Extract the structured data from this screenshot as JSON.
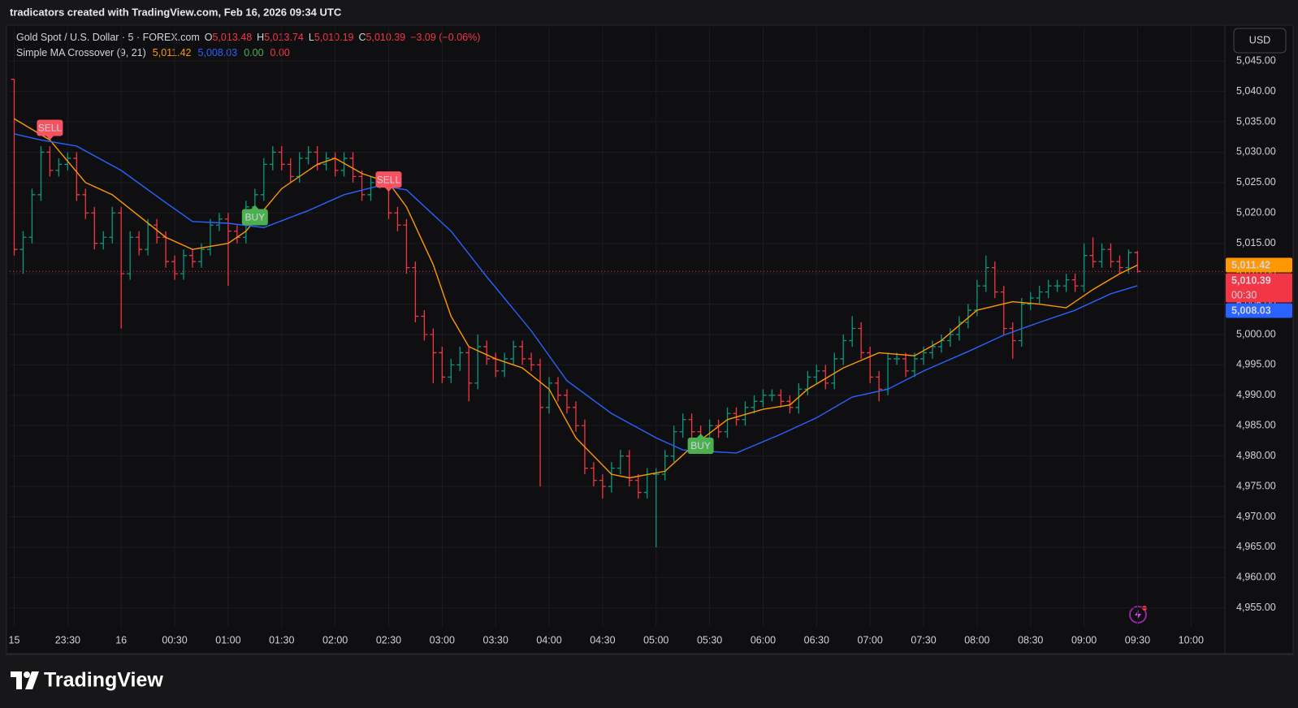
{
  "header": {
    "title": "tradicators created with TradingView.com, Feb 16, 2026 09:34 UTC"
  },
  "footer": {
    "brand": "TradingView"
  },
  "chart_data": {
    "type": "ohlc",
    "symbol": "Gold Spot / U.S. Dollar · 5 · FOREX.com",
    "ohlc_legend": [
      {
        "key": "O",
        "value": "5,013.48"
      },
      {
        "key": "H",
        "value": "5,013.74"
      },
      {
        "key": "L",
        "value": "5,010.19"
      },
      {
        "key": "C",
        "value": "5,010.39"
      }
    ],
    "change": "−3.09 (−0.06%)",
    "indicator": {
      "name": "Simple MA Crossover (9, 21)",
      "values": [
        {
          "text": "5,011.42",
          "color": "#ff9800"
        },
        {
          "text": "5,008.03",
          "color": "#2962ff"
        },
        {
          "text": "0.00",
          "color": "#4caf50"
        },
        {
          "text": "0.00",
          "color": "#f23645"
        }
      ]
    },
    "currency": "USD",
    "xlim": [
      -0.5,
      135.8
    ],
    "ylim": [
      4951.9,
      5050.5
    ],
    "grid": true,
    "xticks": [
      {
        "value": 0,
        "label": "15"
      },
      {
        "value": 6,
        "label": "23:30"
      },
      {
        "value": 12,
        "label": "16"
      },
      {
        "value": 18,
        "label": "00:30"
      },
      {
        "value": 24,
        "label": "01:00"
      },
      {
        "value": 30,
        "label": "01:30"
      },
      {
        "value": 36,
        "label": "02:00"
      },
      {
        "value": 42,
        "label": "02:30"
      },
      {
        "value": 48,
        "label": "03:00"
      },
      {
        "value": 54,
        "label": "03:30"
      },
      {
        "value": 60,
        "label": "04:00"
      },
      {
        "value": 66,
        "label": "04:30"
      },
      {
        "value": 72,
        "label": "05:00"
      },
      {
        "value": 78,
        "label": "05:30"
      },
      {
        "value": 84,
        "label": "06:00"
      },
      {
        "value": 90,
        "label": "06:30"
      },
      {
        "value": 96,
        "label": "07:00"
      },
      {
        "value": 102,
        "label": "07:30"
      },
      {
        "value": 108,
        "label": "08:00"
      },
      {
        "value": 114,
        "label": "08:30"
      },
      {
        "value": 120,
        "label": "09:00"
      },
      {
        "value": 126,
        "label": "09:30"
      },
      {
        "value": 132,
        "label": "10:00"
      }
    ],
    "yticks": [
      {
        "value": 4955,
        "label": "4,955.00"
      },
      {
        "value": 4960,
        "label": "4,960.00"
      },
      {
        "value": 4965,
        "label": "4,965.00"
      },
      {
        "value": 4970,
        "label": "4,970.00"
      },
      {
        "value": 4975,
        "label": "4,975.00"
      },
      {
        "value": 4980,
        "label": "4,980.00"
      },
      {
        "value": 4985,
        "label": "4,985.00"
      },
      {
        "value": 4990,
        "label": "4,990.00"
      },
      {
        "value": 4995,
        "label": "4,995.00"
      },
      {
        "value": 5000,
        "label": "5,000.00"
      },
      {
        "value": 5005,
        "label": "5,005.00"
      },
      {
        "value": 5010,
        "label": "5,010.00"
      },
      {
        "value": 5015,
        "label": "5,015.00"
      },
      {
        "value": 5020,
        "label": "5,020.00"
      },
      {
        "value": 5025,
        "label": "5,025.00"
      },
      {
        "value": 5030,
        "label": "5,030.00"
      },
      {
        "value": 5035,
        "label": "5,035.00"
      },
      {
        "value": 5040,
        "label": "5,040.00"
      },
      {
        "value": 5045,
        "label": "5,045.00"
      }
    ],
    "bars": {
      "up_color": "#089981",
      "down_color": "#f23645",
      "open": [
        5042,
        5014,
        5016,
        5023,
        5030,
        5027,
        5028,
        5029,
        5023,
        5020,
        5015,
        5016,
        5020,
        5010,
        5016,
        5014,
        5018,
        5016,
        5012,
        5010,
        5013,
        5012,
        5014,
        5018,
        5019,
        5017,
        5016,
        5021,
        5023,
        5028,
        5030,
        5028,
        5026,
        5029,
        5030,
        5028,
        5029,
        5027,
        5029,
        5026,
        5023,
        5025,
        5025,
        5020,
        5018,
        5011,
        5003,
        5000,
        4997,
        4993,
        4995,
        4997,
        4992,
        4998,
        4996,
        4994,
        4996,
        4998,
        4996,
        4995,
        4988,
        4992,
        4990,
        4988,
        4985,
        4978,
        4976,
        4975,
        4978,
        4980,
        4976,
        4974,
        4977,
        4977,
        4980,
        4984,
        4986,
        4984,
        4983,
        4985,
        4984,
        4987,
        4986,
        4988,
        4989,
        4990,
        4990,
        4989,
        4988,
        4991,
        4993,
        4994,
        4992,
        4996,
        4999,
        5001,
        4997,
        4993,
        4991,
        4996,
        4996,
        4994,
        4996,
        4997,
        4998,
        4999,
        5000,
        5002,
        5004,
        5008,
        5011,
        5007,
        5001,
        4999,
        5005,
        5006,
        5007,
        5008,
        5008,
        5009,
        5008,
        5013,
        5012,
        5014,
        5012,
        5011,
        5013.48
      ],
      "high": [
        5042,
        5017,
        5024,
        5031,
        5031,
        5029,
        5030,
        5030,
        5024,
        5021,
        5017,
        5021,
        5021,
        5017,
        5017,
        5019,
        5019,
        5017,
        5013,
        5014,
        5014,
        5015,
        5019,
        5020,
        5020,
        5018,
        5022,
        5024,
        5029,
        5031,
        5031,
        5029,
        5030,
        5031,
        5031,
        5030,
        5030,
        5030,
        5030,
        5027,
        5026,
        5026,
        5026,
        5021,
        5019,
        5012,
        5004,
        5001,
        4998,
        4996,
        4998,
        4998,
        5000,
        4999,
        4997,
        4997,
        4999,
        4999,
        4997,
        4996,
        4993,
        4993,
        4991,
        4989,
        4986,
        4979,
        4977,
        4979,
        4981,
        4981,
        4977,
        4978,
        4978,
        4981,
        4985,
        4987,
        4987,
        4985,
        4986,
        4986,
        4988,
        4988,
        4989,
        4990,
        4991,
        4991,
        4991,
        4990,
        4992,
        4994,
        4995,
        4995,
        4997,
        5000,
        5003,
        5002,
        4998,
        4994,
        4997,
        4997,
        4997,
        4997,
        4998,
        4999,
        5000,
        5001,
        5003,
        5005,
        5009,
        5013,
        5012,
        5008,
        5002,
        5006,
        5007,
        5008,
        5009,
        5009,
        5010,
        5010,
        5015,
        5016,
        5015,
        5015,
        5013,
        5014,
        5013.74
      ],
      "low": [
        5013,
        5010,
        5015,
        5022,
        5026,
        5026,
        5027,
        5022,
        5019,
        5014,
        5014,
        5015,
        5001,
        5009,
        5013,
        5013,
        5015,
        5011,
        5009,
        5009,
        5011,
        5011,
        5013,
        5017,
        5008,
        5015,
        5015,
        5020,
        5022,
        5027,
        5027,
        5025,
        5025,
        5028,
        5027,
        5027,
        5026,
        5026,
        5025,
        5022,
        5022,
        5024,
        5019,
        5017,
        5010,
        5002,
        4999,
        4992,
        4992,
        4992,
        4994,
        4989,
        4991,
        4995,
        4993,
        4993,
        4995,
        4995,
        4994,
        4975,
        4987,
        4989,
        4987,
        4984,
        4977,
        4975,
        4973,
        4974,
        4977,
        4975,
        4973,
        4973,
        4965,
        4976,
        4979,
        4983,
        4983,
        4982,
        4982,
        4983,
        4983,
        4985,
        4985,
        4987,
        4988,
        4989,
        4988,
        4987,
        4987,
        4990,
        4992,
        4991,
        4991,
        4995,
        4998,
        4996,
        4992,
        4989,
        4990,
        4995,
        4993,
        4993,
        4995,
        4996,
        4997,
        4998,
        4999,
        5001,
        5003,
        5007,
        5006,
        5000,
        4996,
        4998,
        5004,
        5005,
        5006,
        5007,
        5007,
        5007,
        5007,
        5011,
        5011,
        5011,
        5010,
        5010,
        5010.19
      ],
      "close": [
        5014,
        5016,
        5023,
        5030,
        5027,
        5028,
        5029,
        5023,
        5020,
        5015,
        5016,
        5020,
        5010,
        5016,
        5014,
        5018,
        5016,
        5012,
        5010,
        5013,
        5012,
        5014,
        5018,
        5019,
        5017,
        5016,
        5021,
        5023,
        5028,
        5030,
        5028,
        5026,
        5029,
        5030,
        5028,
        5029,
        5027,
        5029,
        5026,
        5023,
        5025,
        5025,
        5020,
        5018,
        5011,
        5003,
        5000,
        4997,
        4993,
        4995,
        4997,
        4992,
        4998,
        4996,
        4994,
        4996,
        4998,
        4996,
        4995,
        4988,
        4992,
        4990,
        4988,
        4985,
        4978,
        4976,
        4975,
        4978,
        4980,
        4976,
        4974,
        4977,
        4977,
        4980,
        4984,
        4986,
        4984,
        4983,
        4985,
        4984,
        4987,
        4986,
        4988,
        4989,
        4990,
        4990,
        4989,
        4988,
        4991,
        4993,
        4994,
        4992,
        4996,
        4999,
        5001,
        4997,
        4993,
        4991,
        4996,
        4996,
        4994,
        4996,
        4997,
        4998,
        4999,
        5000,
        5002,
        5004,
        5008,
        5011,
        5007,
        5001,
        4999,
        5005,
        5006,
        5007,
        5008,
        5008,
        5009,
        5008,
        5013,
        5012,
        5014,
        5012,
        5011,
        5013.48,
        5010.39
      ]
    },
    "series": [
      {
        "color": "#ff9800",
        "x": [
          0,
          4,
          8,
          11,
          17,
          20,
          24,
          26,
          30,
          34,
          36,
          39,
          42,
          44,
          47,
          49,
          51,
          54,
          57,
          60,
          63,
          67,
          69,
          73,
          76,
          80,
          84,
          87,
          89,
          93,
          97,
          101,
          104,
          108,
          112,
          115,
          118,
          121,
          124,
          126
        ],
        "values": [
          5035.5,
          5032,
          5025,
          5023,
          5016,
          5014,
          5015,
          5017,
          5024,
          5028,
          5029,
          5026.5,
          5025,
          5021,
          5011.5,
          5003,
          4998,
          4996,
          4994.5,
          4991,
          4983,
          4977,
          4976.4,
          4977.5,
          4981.5,
          4986,
          4987.7,
          4988.4,
          4991,
          4994.5,
          4997,
          4996.5,
          4999,
          5004,
          5005.4,
          5005,
          5004.4,
          5007.4,
          5010,
          5011.42
        ]
      },
      {
        "color": "#2962ff",
        "x": [
          0,
          3,
          7,
          12,
          17,
          20,
          24,
          28,
          33,
          37,
          41,
          44,
          49,
          53,
          58,
          62,
          67,
          72,
          75,
          81,
          86,
          90,
          94,
          98,
          102,
          107,
          111,
          115,
          119,
          123,
          126
        ],
        "values": [
          5033,
          5032,
          5031,
          5027,
          5021.7,
          5018.6,
          5018.3,
          5017.6,
          5020.4,
          5023,
          5024.5,
          5023.8,
          5017,
          5009.5,
          5000.6,
          4992.4,
          4987,
          4983,
          4981,
          4980.5,
          4983.6,
          4986.3,
          4989.7,
          4991,
          4994,
          4997.2,
          4999.9,
          5002,
          5004,
          5006.7,
          5008.03
        ]
      }
    ],
    "signals": [
      {
        "label": "SELL",
        "x": 4,
        "value": 5032,
        "placement": "above",
        "color": "#f7525f"
      },
      {
        "label": "BUY",
        "x": 27,
        "value": 5021.3,
        "placement": "below",
        "color": "#4caf50"
      },
      {
        "label": "SELL",
        "x": 42,
        "value": 5023.5,
        "placement": "above",
        "color": "#f7525f"
      },
      {
        "label": "BUY",
        "x": 77,
        "value": 4983.7,
        "placement": "below",
        "color": "#4caf50"
      }
    ],
    "signal_text_color": "#2962ff",
    "price_tags": [
      {
        "text": "5,011.42",
        "value": 5011.42,
        "color": "#ff9800"
      },
      {
        "text": "5,010.39",
        "countdown": "00:30",
        "value": 5010.39,
        "color": "#f23645"
      },
      {
        "text": "5,008.03",
        "value": 5008.03,
        "color": "#2962ff"
      }
    ]
  }
}
